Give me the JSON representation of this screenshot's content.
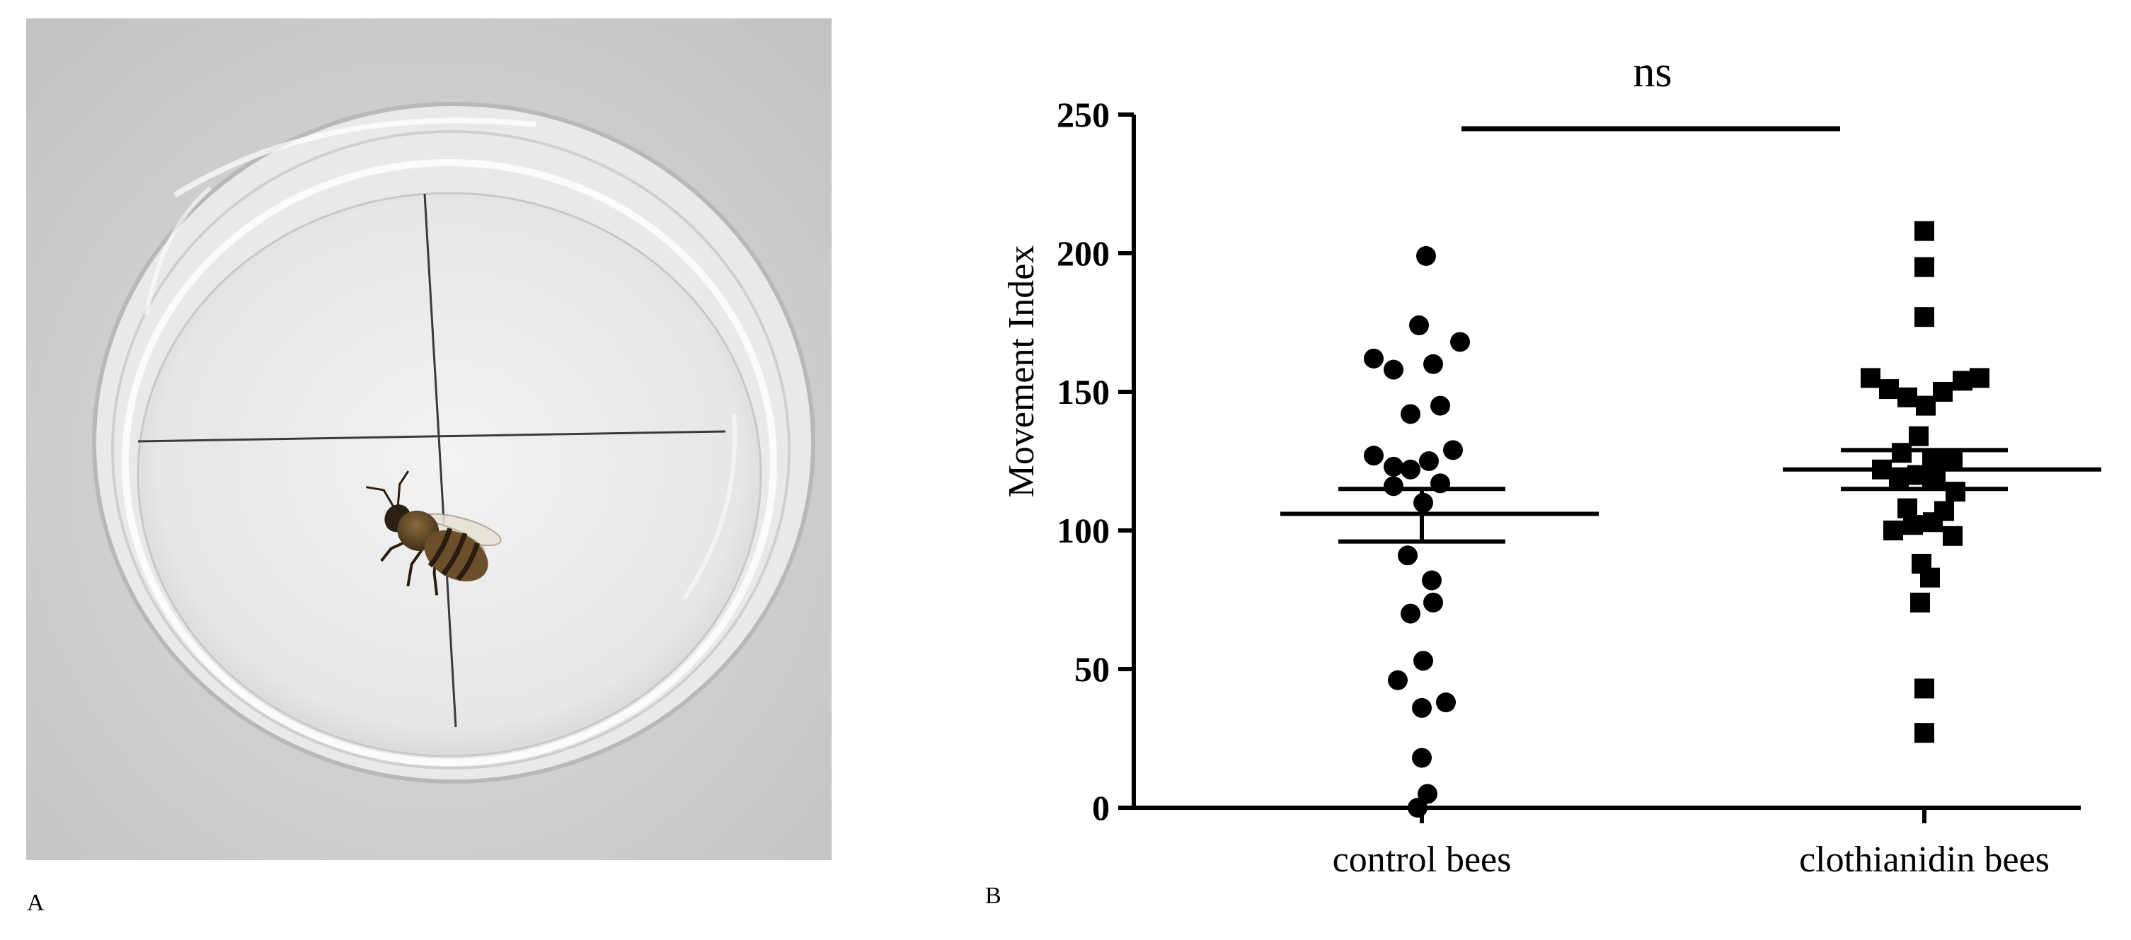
{
  "figure": {
    "panel_a_label": "A",
    "panel_b_label": "B"
  },
  "photo": {
    "subject": "honeybee in petri dish with cross lines",
    "background_color": "#cfcfcf"
  },
  "chart_data": {
    "type": "scatter",
    "title": "",
    "xlabel": "",
    "ylabel": "Movement Index",
    "ylim": [
      0,
      250
    ],
    "yticks": [
      "0",
      "50",
      "100",
      "150",
      "200",
      "250"
    ],
    "categories": [
      "control bees",
      "clothianidin bees"
    ],
    "significance": {
      "label": "ns",
      "between": [
        "control bees",
        "clothianidin bees"
      ]
    },
    "series": [
      {
        "category": "control bees",
        "marker": "circle",
        "mean": 106,
        "sem": [
          96,
          115
        ],
        "points": [
          {
            "x": 0.03,
            "y": 199
          },
          {
            "x": -0.34,
            "y": 162
          },
          {
            "x": -0.2,
            "y": 158
          },
          {
            "x": -0.02,
            "y": 174
          },
          {
            "x": 0.08,
            "y": 160
          },
          {
            "x": 0.27,
            "y": 168
          },
          {
            "x": -0.08,
            "y": 142
          },
          {
            "x": 0.13,
            "y": 145
          },
          {
            "x": -0.34,
            "y": 127
          },
          {
            "x": -0.2,
            "y": 123
          },
          {
            "x": -0.08,
            "y": 122
          },
          {
            "x": 0.05,
            "y": 125
          },
          {
            "x": 0.22,
            "y": 129
          },
          {
            "x": -0.2,
            "y": 116
          },
          {
            "x": 0.13,
            "y": 117
          },
          {
            "x": 0.01,
            "y": 110
          },
          {
            "x": -0.1,
            "y": 91
          },
          {
            "x": 0.07,
            "y": 82
          },
          {
            "x": -0.08,
            "y": 70
          },
          {
            "x": 0.08,
            "y": 74
          },
          {
            "x": 0.01,
            "y": 53
          },
          {
            "x": -0.17,
            "y": 46
          },
          {
            "x": 0.0,
            "y": 36
          },
          {
            "x": 0.17,
            "y": 38
          },
          {
            "x": 0.0,
            "y": 18
          },
          {
            "x": 0.04,
            "y": 5
          },
          {
            "x": -0.03,
            "y": 0
          }
        ]
      },
      {
        "category": "clothianidin bees",
        "marker": "square",
        "mean": 122,
        "sem": [
          115,
          129
        ],
        "points": [
          {
            "x": 0.0,
            "y": 208
          },
          {
            "x": 0.0,
            "y": 195
          },
          {
            "x": 0.0,
            "y": 177
          },
          {
            "x": -0.38,
            "y": 155
          },
          {
            "x": -0.25,
            "y": 151
          },
          {
            "x": -0.12,
            "y": 148
          },
          {
            "x": 0.01,
            "y": 145
          },
          {
            "x": 0.13,
            "y": 150
          },
          {
            "x": 0.27,
            "y": 154
          },
          {
            "x": 0.39,
            "y": 155
          },
          {
            "x": -0.04,
            "y": 134
          },
          {
            "x": -0.16,
            "y": 128
          },
          {
            "x": 0.06,
            "y": 126
          },
          {
            "x": 0.2,
            "y": 125
          },
          {
            "x": -0.3,
            "y": 122
          },
          {
            "x": -0.18,
            "y": 118
          },
          {
            "x": -0.05,
            "y": 120
          },
          {
            "x": 0.08,
            "y": 119
          },
          {
            "x": 0.22,
            "y": 114
          },
          {
            "x": -0.12,
            "y": 108
          },
          {
            "x": 0.14,
            "y": 107
          },
          {
            "x": -0.22,
            "y": 100
          },
          {
            "x": -0.08,
            "y": 102
          },
          {
            "x": 0.06,
            "y": 103
          },
          {
            "x": 0.2,
            "y": 98
          },
          {
            "x": -0.02,
            "y": 88
          },
          {
            "x": 0.04,
            "y": 83
          },
          {
            "x": -0.03,
            "y": 74
          },
          {
            "x": 0.0,
            "y": 43
          },
          {
            "x": 0.0,
            "y": 27
          }
        ]
      }
    ]
  }
}
